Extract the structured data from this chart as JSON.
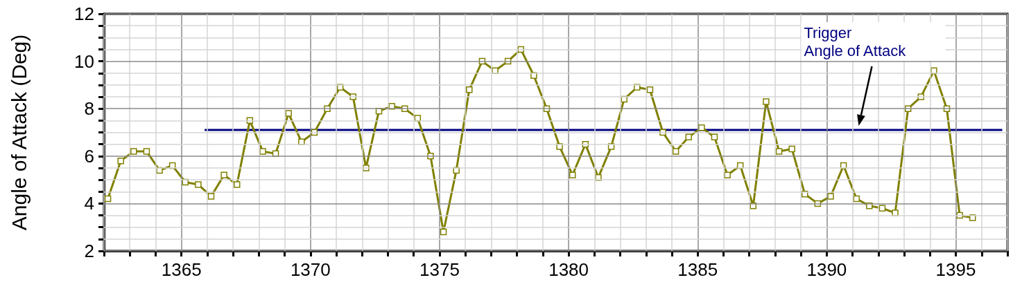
{
  "chart_data": {
    "type": "line",
    "ylabel": "Angle of Attack (Deg)",
    "xlim": [
      1362,
      1397
    ],
    "ylim": [
      2,
      12
    ],
    "xticks": [
      {
        "value": 1362,
        "label": null
      },
      {
        "value": 1363,
        "label": null
      },
      {
        "value": 1364,
        "label": null
      },
      1365,
      {
        "value": 1366,
        "label": null
      },
      {
        "value": 1367,
        "label": null
      },
      {
        "value": 1368,
        "label": null
      },
      {
        "value": 1369,
        "label": null
      },
      1370,
      {
        "value": 1371,
        "label": null
      },
      {
        "value": 1372,
        "label": null
      },
      {
        "value": 1373,
        "label": null
      },
      {
        "value": 1374,
        "label": null
      },
      1375,
      {
        "value": 1376,
        "label": null
      },
      {
        "value": 1377,
        "label": null
      },
      {
        "value": 1378,
        "label": null
      },
      {
        "value": 1379,
        "label": null
      },
      1380,
      {
        "value": 1381,
        "label": null
      },
      {
        "value": 1382,
        "label": null
      },
      {
        "value": 1383,
        "label": null
      },
      {
        "value": 1384,
        "label": null
      },
      1385,
      {
        "value": 1386,
        "label": null
      },
      {
        "value": 1387,
        "label": null
      },
      {
        "value": 1388,
        "label": null
      },
      {
        "value": 1389,
        "label": null
      },
      1390,
      {
        "value": 1391,
        "label": null
      },
      {
        "value": 1392,
        "label": null
      },
      {
        "value": 1393,
        "label": null
      },
      {
        "value": 1394,
        "label": null
      },
      1395,
      {
        "value": 1396,
        "label": null
      },
      {
        "value": 1397,
        "label": null
      }
    ],
    "yticks": [
      2,
      {
        "value": 2.5,
        "label": null
      },
      {
        "value": 3,
        "label": null
      },
      {
        "value": 3.5,
        "label": null
      },
      4,
      {
        "value": 4.5,
        "label": null
      },
      {
        "value": 5,
        "label": null
      },
      {
        "value": 5.5,
        "label": null
      },
      6,
      {
        "value": 6.5,
        "label": null
      },
      {
        "value": 7,
        "label": null
      },
      {
        "value": 7.5,
        "label": null
      },
      8,
      {
        "value": 8.5,
        "label": null
      },
      {
        "value": 9,
        "label": null
      },
      {
        "value": 9.5,
        "label": null
      },
      10,
      {
        "value": 10.5,
        "label": null
      },
      {
        "value": 11,
        "label": null
      },
      {
        "value": 11.5,
        "label": null
      },
      12
    ],
    "grid": true,
    "marker": "square",
    "line_style": "solid",
    "series": [
      {
        "color": "#808000",
        "x": [
          1362.15,
          1362.65,
          1363.15,
          1363.65,
          1364.15,
          1364.65,
          1365.15,
          1365.65,
          1366.15,
          1366.65,
          1367.15,
          1367.65,
          1368.15,
          1368.65,
          1369.15,
          1369.65,
          1370.15,
          1370.65,
          1371.15,
          1371.65,
          1372.15,
          1372.65,
          1373.15,
          1373.65,
          1374.15,
          1374.65,
          1375.15,
          1375.65,
          1376.15,
          1376.65,
          1377.15,
          1377.65,
          1378.15,
          1378.65,
          1379.15,
          1379.65,
          1380.15,
          1380.65,
          1381.15,
          1381.65,
          1382.15,
          1382.65,
          1383.15,
          1383.65,
          1384.15,
          1384.65,
          1385.15,
          1385.65,
          1386.15,
          1386.65,
          1387.15,
          1387.65,
          1388.15,
          1388.65,
          1389.15,
          1389.65,
          1390.15,
          1390.65,
          1391.15,
          1391.65,
          1392.15,
          1392.65,
          1393.15,
          1393.65,
          1394.15,
          1394.65,
          1395.15,
          1395.65
        ],
        "values": [
          4.2,
          5.8,
          6.2,
          6.2,
          5.4,
          5.6,
          4.9,
          4.8,
          4.3,
          5.2,
          4.8,
          7.5,
          6.2,
          6.1,
          7.8,
          6.6,
          7.0,
          8.0,
          8.9,
          8.5,
          5.5,
          7.9,
          8.1,
          8.0,
          7.6,
          6.0,
          2.8,
          5.4,
          8.8,
          10.0,
          9.6,
          10.0,
          10.5,
          9.4,
          8.0,
          6.4,
          5.2,
          6.5,
          5.1,
          6.4,
          8.4,
          8.9,
          8.8,
          7.0,
          6.2,
          6.8,
          7.2,
          6.8,
          5.2,
          5.6,
          3.9,
          8.3,
          6.2,
          6.3,
          4.4,
          4.0,
          4.3,
          5.6,
          4.2,
          3.9,
          3.8,
          3.6,
          8.0,
          8.5,
          9.6,
          8.0,
          3.5,
          3.4
        ]
      },
      {
        "name": "Trigger\nAngle of Attack",
        "color": "#000080",
        "marker": "none",
        "x": [
          1365.9,
          1396.8
        ],
        "values": [
          7.1,
          7.1
        ]
      }
    ]
  }
}
